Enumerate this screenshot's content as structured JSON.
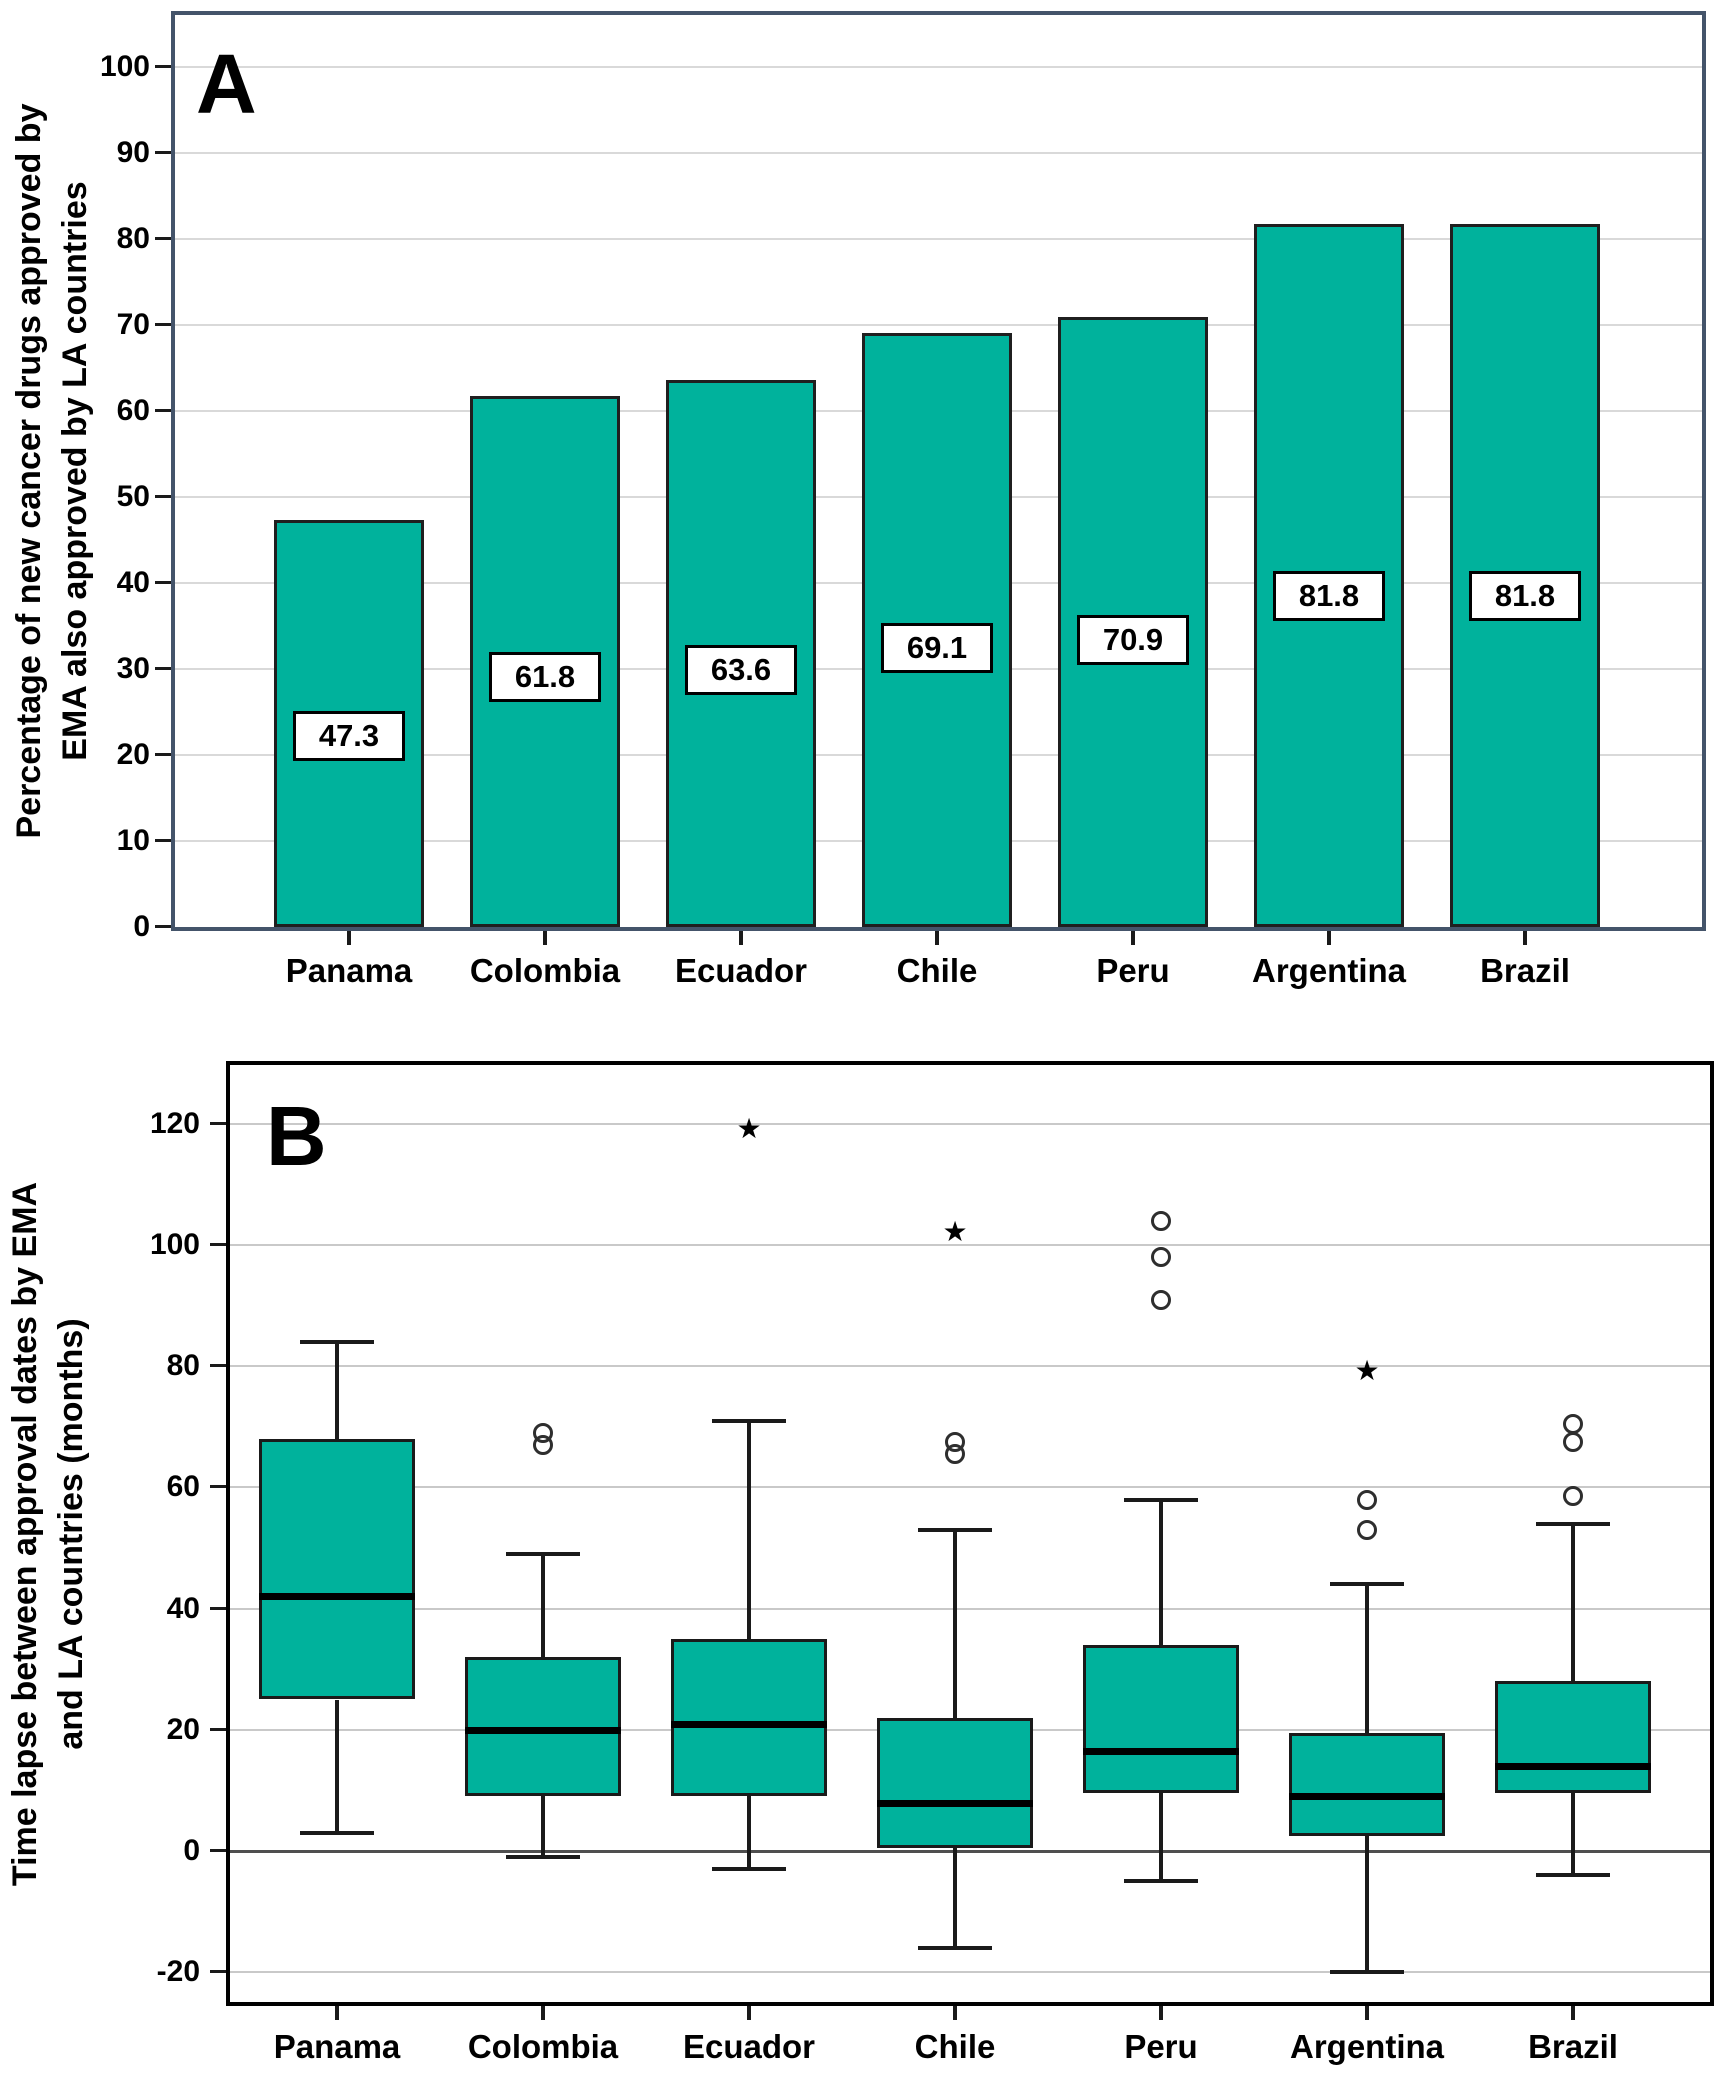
{
  "colors": {
    "teal": "#00b29c",
    "bar_border": "#1f1f1f",
    "box_border": "#1a1a1a",
    "median": "#000000",
    "whisker": "#1a1a1a",
    "panel_a_frame": "#44546a",
    "panel_b_frame": "#000000",
    "gridline_a": "#d9d9d9",
    "gridline_b": "#c9c9c9",
    "zero_line": "#4f4f4f",
    "axis_tick": "#1a1a1a",
    "text": "#000000",
    "value_box_bg": "#ffffff",
    "value_box_border": "#000000",
    "outlier": "#2e2e2e"
  },
  "chart_data": [
    {
      "type": "bar",
      "panel_label": "A",
      "ylabel_lines": [
        "Percentage of new cancer drugs approved by",
        "EMA also approved by LA countries"
      ],
      "categories": [
        "Panama",
        "Colombia",
        "Ecuador",
        "Chile",
        "Peru",
        "Argentina",
        "Brazil"
      ],
      "values": [
        47.3,
        61.8,
        63.6,
        69.1,
        70.9,
        81.8,
        81.8
      ],
      "bar_labels": [
        "47.3",
        "61.8",
        "63.6",
        "69.1",
        "70.9",
        "81.8",
        "81.8"
      ],
      "ylim": [
        0,
        100
      ],
      "ytick_step": 10,
      "grid": true,
      "legend": false
    },
    {
      "type": "boxplot",
      "panel_label": "B",
      "ylabel_lines": [
        "Time lapse between approval dates by EMA",
        "and LA countries (months)"
      ],
      "categories": [
        "Panama",
        "Colombia",
        "Ecuador",
        "Chile",
        "Peru",
        "Argentina",
        "Brazil"
      ],
      "ylim": [
        -25,
        130
      ],
      "yticks": [
        -20,
        0,
        20,
        40,
        60,
        80,
        100,
        120
      ],
      "grid": true,
      "series": [
        {
          "name": "Panama",
          "whisker_low": 3,
          "q1": 25,
          "median": 42,
          "q3": 68,
          "whisker_high": 84,
          "outliers_circle": [],
          "outliers_star": []
        },
        {
          "name": "Colombia",
          "whisker_low": -1,
          "q1": 9,
          "median": 20,
          "q3": 32,
          "whisker_high": 49,
          "outliers_circle": [
            67,
            69
          ],
          "outliers_star": []
        },
        {
          "name": "Ecuador",
          "whisker_low": -3,
          "q1": 9,
          "median": 21,
          "q3": 35,
          "whisker_high": 71,
          "outliers_circle": [],
          "outliers_star": [
            119
          ]
        },
        {
          "name": "Chile",
          "whisker_low": -16,
          "q1": 0.5,
          "median": 8,
          "q3": 22,
          "whisker_high": 53,
          "outliers_circle": [
            65.5,
            67.5
          ],
          "outliers_star": [
            102
          ]
        },
        {
          "name": "Peru",
          "whisker_low": -5,
          "q1": 9.5,
          "median": 16.5,
          "q3": 34,
          "whisker_high": 58,
          "outliers_circle": [
            91,
            98,
            104
          ],
          "outliers_star": []
        },
        {
          "name": "Argentina",
          "whisker_low": -20,
          "q1": 2.5,
          "median": 9,
          "q3": 19.5,
          "whisker_high": 44,
          "outliers_circle": [
            53,
            58
          ],
          "outliers_star": [
            79
          ]
        },
        {
          "name": "Brazil",
          "whisker_low": -4,
          "q1": 9.5,
          "median": 14,
          "q3": 28,
          "whisker_high": 54,
          "outliers_circle": [
            58.5,
            67.5,
            70.5
          ],
          "outliers_star": []
        }
      ]
    }
  ]
}
